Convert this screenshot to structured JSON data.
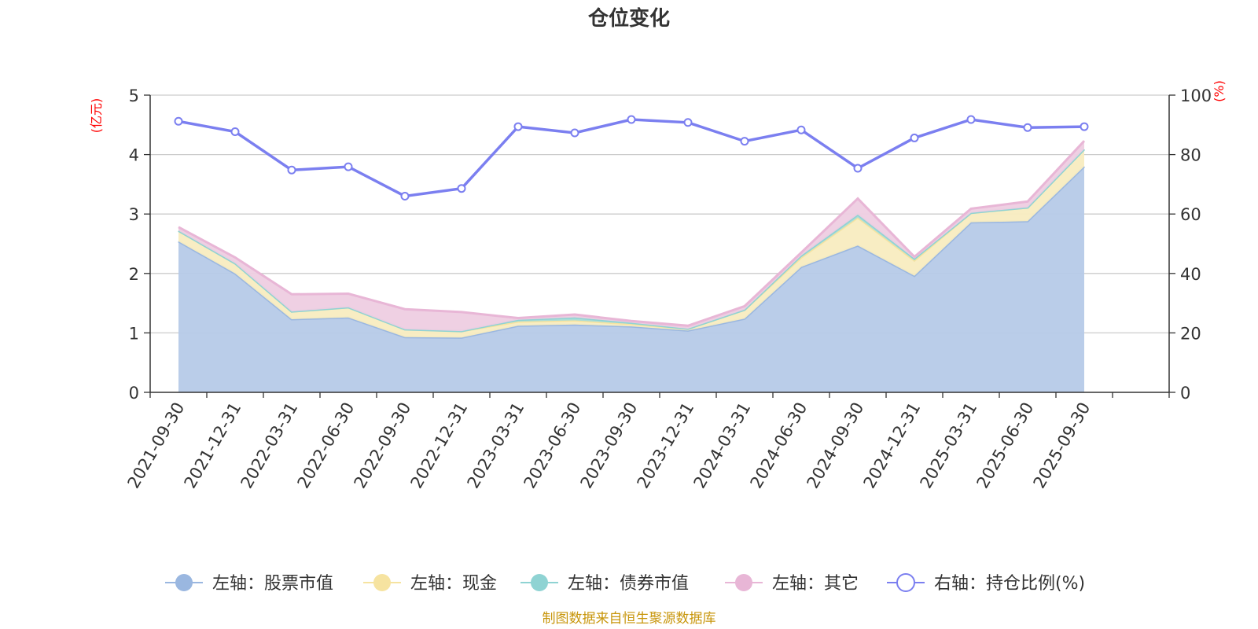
{
  "chart_data": {
    "type": "area",
    "title": "仓位变化",
    "left_axis_unit": "(亿元)",
    "right_axis_unit": "(%)",
    "left_ylim": [
      0,
      5
    ],
    "left_ticks": [
      "0",
      "1",
      "2",
      "3",
      "4",
      "5"
    ],
    "right_ylim": [
      0,
      100
    ],
    "right_ticks": [
      "0",
      "20",
      "40",
      "60",
      "80",
      "100"
    ],
    "categories": [
      "2021-09-30",
      "2021-12-31",
      "2022-03-31",
      "2022-06-30",
      "2022-09-30",
      "2022-12-31",
      "2023-03-31",
      "2023-06-30",
      "2023-09-30",
      "2023-12-31",
      "2024-03-31",
      "2024-06-30",
      "2024-09-30",
      "2024-12-31",
      "2025-03-31",
      "2025-06-30",
      "2025-09-30"
    ],
    "stacked_series": [
      {
        "name": "左轴：股票市值",
        "axis": "left",
        "color": "#9ab7e0",
        "fill": "#b6cae8",
        "values": [
          2.54,
          2.0,
          1.23,
          1.26,
          0.93,
          0.92,
          1.12,
          1.14,
          1.11,
          1.04,
          1.24,
          2.11,
          2.47,
          1.96,
          2.86,
          2.88,
          3.8
        ]
      },
      {
        "name": "左轴：现金",
        "axis": "left",
        "color": "#f6e3a0",
        "fill": "#f8ecc0",
        "values": [
          0.18,
          0.17,
          0.13,
          0.17,
          0.13,
          0.11,
          0.07,
          0.07,
          0.04,
          0.03,
          0.15,
          0.16,
          0.47,
          0.26,
          0.16,
          0.23,
          0.29
        ]
      },
      {
        "name": "左轴：债券市值",
        "axis": "left",
        "color": "#8fd3d3",
        "fill": "#a8dcd9",
        "values": [
          0.0,
          0.0,
          0.0,
          0.0,
          0.0,
          0.0,
          0.03,
          0.05,
          0.02,
          0.0,
          0.0,
          0.03,
          0.05,
          0.03,
          0.0,
          0.0,
          0.0
        ]
      },
      {
        "name": "左轴：其它",
        "axis": "left",
        "color": "#e8b6d6",
        "fill": "#eecde2",
        "values": [
          0.06,
          0.1,
          0.29,
          0.23,
          0.34,
          0.32,
          0.03,
          0.05,
          0.03,
          0.05,
          0.06,
          0.05,
          0.27,
          0.03,
          0.07,
          0.1,
          0.14
        ]
      }
    ],
    "line_series": {
      "name": "右轴：持仓比例(%)",
      "axis": "right",
      "color": "#7b7ff0",
      "values": [
        91.2,
        87.7,
        74.8,
        75.9,
        66.0,
        68.6,
        89.4,
        87.3,
        91.8,
        90.8,
        84.5,
        88.3,
        75.4,
        85.6,
        91.8,
        89.1,
        89.4
      ]
    }
  },
  "legend": [
    {
      "label": "左轴：股票市值",
      "color": "#9ab7e0",
      "style": "filled"
    },
    {
      "label": "左轴：现金",
      "color": "#f6e3a0",
      "style": "filled"
    },
    {
      "label": "左轴：债券市值",
      "color": "#8fd3d3",
      "style": "filled"
    },
    {
      "label": "左轴：其它",
      "color": "#e8b6d6",
      "style": "filled"
    },
    {
      "label": "右轴：持仓比例(%)",
      "color": "#7b7ff0",
      "style": "hollow"
    }
  ],
  "source_text": "制图数据来自恒生聚源数据库"
}
